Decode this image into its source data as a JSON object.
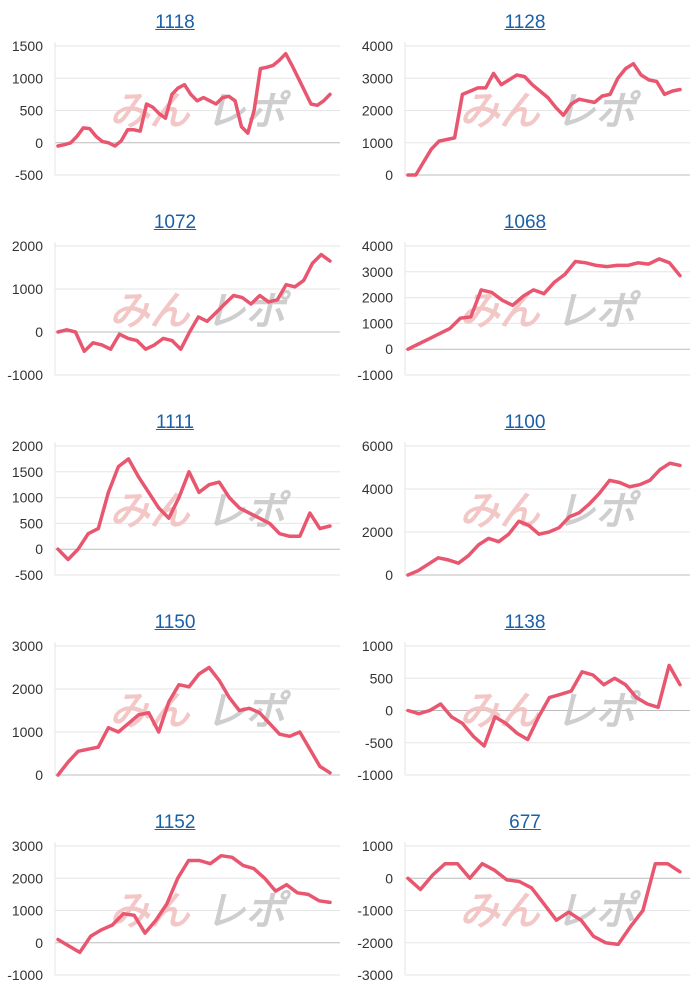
{
  "watermark": {
    "part1": "みん",
    "part2": "レポ"
  },
  "colors": {
    "line": "#e8566f",
    "grid": "#e6e6e6",
    "axis": "#bcbcbc",
    "title": "#1a5fa8"
  },
  "chart_data": [
    {
      "type": "line",
      "title": "1118",
      "yticks": [
        -500,
        0,
        500,
        1000,
        1500
      ],
      "ylim": [
        -500,
        1500
      ],
      "values": [
        -50,
        -30,
        0,
        100,
        230,
        220,
        100,
        20,
        0,
        -50,
        30,
        200,
        200,
        180,
        600,
        550,
        450,
        380,
        750,
        850,
        900,
        750,
        650,
        700,
        650,
        600,
        700,
        720,
        650,
        250,
        150,
        500,
        1150,
        1170,
        1200,
        1280,
        1380,
        1200,
        1000,
        800,
        600,
        580,
        650,
        750
      ]
    },
    {
      "type": "line",
      "title": "1128",
      "yticks": [
        0,
        1000,
        2000,
        3000,
        4000
      ],
      "ylim": [
        0,
        4000
      ],
      "values": [
        0,
        0,
        400,
        800,
        1050,
        1100,
        1150,
        2500,
        2600,
        2700,
        2700,
        3150,
        2800,
        2950,
        3100,
        3050,
        2800,
        2600,
        2400,
        2100,
        1850,
        2200,
        2350,
        2300,
        2250,
        2450,
        2500,
        3000,
        3300,
        3450,
        3100,
        2950,
        2900,
        2500,
        2600,
        2650
      ]
    },
    {
      "type": "line",
      "title": "1072",
      "yticks": [
        -1000,
        0,
        1000,
        2000
      ],
      "ylim": [
        -1000,
        2000
      ],
      "values": [
        0,
        50,
        0,
        -450,
        -250,
        -300,
        -400,
        -50,
        -150,
        -200,
        -400,
        -300,
        -150,
        -200,
        -400,
        0,
        350,
        250,
        450,
        650,
        850,
        800,
        650,
        850,
        700,
        750,
        1100,
        1050,
        1200,
        1600,
        1800,
        1650
      ]
    },
    {
      "type": "line",
      "title": "1068",
      "yticks": [
        -1000,
        0,
        1000,
        2000,
        3000,
        4000
      ],
      "ylim": [
        -1000,
        4000
      ],
      "values": [
        0,
        200,
        400,
        600,
        800,
        1200,
        1250,
        2300,
        2200,
        1900,
        1700,
        2050,
        2300,
        2150,
        2600,
        2900,
        3400,
        3350,
        3250,
        3200,
        3250,
        3250,
        3350,
        3300,
        3500,
        3350,
        2850
      ]
    },
    {
      "type": "line",
      "title": "1111",
      "yticks": [
        -500,
        0,
        500,
        1000,
        1500,
        2000
      ],
      "ylim": [
        -500,
        2000
      ],
      "values": [
        0,
        -200,
        0,
        300,
        400,
        1100,
        1600,
        1750,
        1400,
        1100,
        800,
        600,
        1000,
        1500,
        1100,
        1250,
        1300,
        1000,
        800,
        700,
        600,
        500,
        300,
        250,
        250,
        700,
        400,
        450
      ]
    },
    {
      "type": "line",
      "title": "1100",
      "yticks": [
        0,
        2000,
        4000,
        6000
      ],
      "ylim": [
        0,
        6000
      ],
      "values": [
        0,
        200,
        500,
        800,
        700,
        550,
        900,
        1400,
        1700,
        1550,
        1900,
        2500,
        2300,
        1900,
        2000,
        2200,
        2700,
        2900,
        3300,
        3800,
        4400,
        4300,
        4100,
        4200,
        4400,
        4900,
        5200,
        5100
      ]
    },
    {
      "type": "line",
      "title": "1150",
      "yticks": [
        0,
        1000,
        2000,
        3000
      ],
      "ylim": [
        0,
        3000
      ],
      "values": [
        0,
        300,
        550,
        600,
        650,
        1100,
        1000,
        1200,
        1400,
        1450,
        1000,
        1700,
        2100,
        2050,
        2350,
        2500,
        2200,
        1800,
        1500,
        1550,
        1450,
        1200,
        950,
        900,
        1000,
        600,
        200,
        50
      ]
    },
    {
      "type": "line",
      "title": "1138",
      "yticks": [
        -1000,
        -500,
        0,
        500,
        1000
      ],
      "ylim": [
        -1000,
        1000
      ],
      "values": [
        0,
        -50,
        0,
        100,
        -100,
        -200,
        -400,
        -550,
        -100,
        -200,
        -350,
        -450,
        -100,
        200,
        250,
        300,
        600,
        550,
        400,
        500,
        400,
        200,
        100,
        50,
        700,
        400
      ]
    },
    {
      "type": "line",
      "title": "1152",
      "yticks": [
        -1000,
        0,
        1000,
        2000,
        3000
      ],
      "ylim": [
        -1000,
        3000
      ],
      "values": [
        100,
        -100,
        -300,
        200,
        400,
        550,
        900,
        850,
        300,
        700,
        1200,
        2000,
        2550,
        2550,
        2450,
        2700,
        2650,
        2400,
        2300,
        2000,
        1600,
        1800,
        1550,
        1500,
        1300,
        1250
      ]
    },
    {
      "type": "line",
      "title": "677",
      "yticks": [
        -3000,
        -2000,
        -1000,
        0,
        1000
      ],
      "ylim": [
        -3000,
        1000
      ],
      "values": [
        0,
        -350,
        100,
        450,
        450,
        0,
        450,
        250,
        -50,
        -100,
        -300,
        -800,
        -1300,
        -1050,
        -1300,
        -1800,
        -2000,
        -2050,
        -1500,
        -1000,
        450,
        450,
        200
      ]
    }
  ]
}
